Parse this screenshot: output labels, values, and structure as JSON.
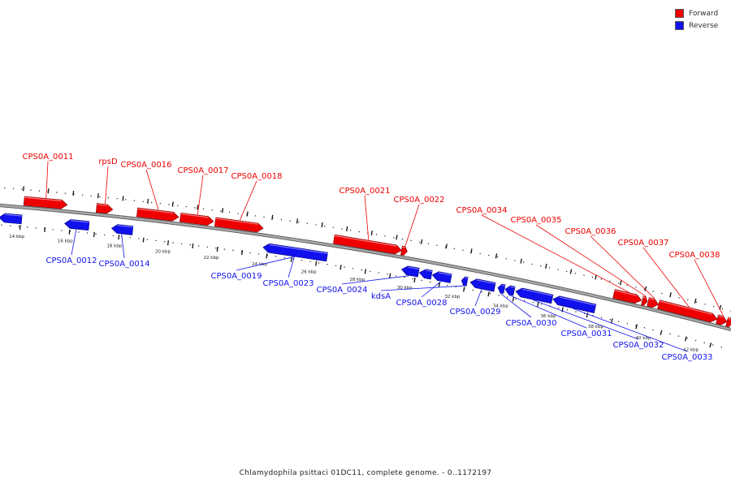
{
  "colors": {
    "forward": "#ee0000",
    "reverse": "#1111ee",
    "backbone": "#888888"
  },
  "legend": {
    "forward_label": "Forward",
    "reverse_label": "Reverse"
  },
  "footer": {
    "text": "Chlamydophila psittaci 01DC11, complete genome. - 0..1172197"
  },
  "scale_ticks_kbp": [
    "14 kbp",
    "16 kbp",
    "18 kbp",
    "20 kbp",
    "22 kbp",
    "24 kbp",
    "26 kbp",
    "28 kbp",
    "30 kbp",
    "32 kbp",
    "34 kbp",
    "36 kbp",
    "38 kbp",
    "40 kbp",
    "42 kbp"
  ],
  "forward_labels": [
    "CPS0A_0011",
    "rpsD",
    "CPS0A_0016",
    "CPS0A_0017",
    "CPS0A_0018",
    "CPS0A_0021",
    "CPS0A_0022",
    "CPS0A_0034",
    "CPS0A_0035",
    "CPS0A_0036",
    "CPS0A_0037",
    "CPS0A_0038"
  ],
  "reverse_labels": [
    "CPS0A_0012",
    "CPS0A_0014",
    "CPS0A_0019",
    "CPS0A_0023",
    "CPS0A_0024",
    "kdsA",
    "CPS0A_0028",
    "CPS0A_0029",
    "CPS0A_0030",
    "CPS0A_0031",
    "CPS0A_0032",
    "CPS0A_0033"
  ]
}
